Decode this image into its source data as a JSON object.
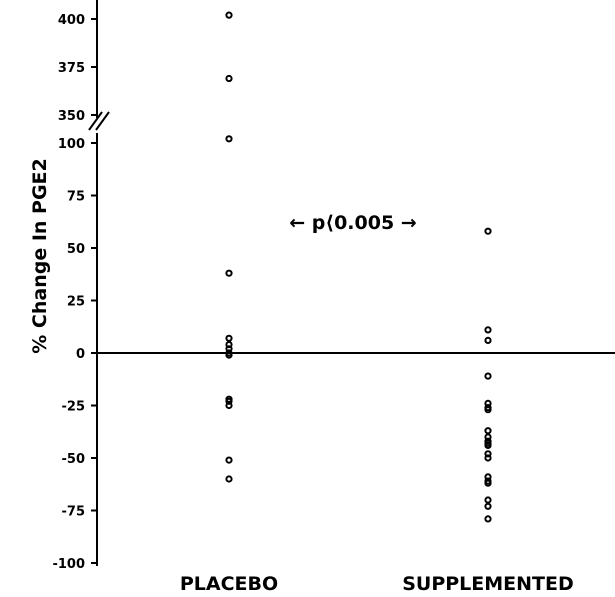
{
  "chart_data": {
    "type": "scatter",
    "ylabel": "% Change In PGE2",
    "categories": [
      "PLACEBO",
      "SUPPLEMENTED"
    ],
    "annotation": "← p⟨0.005 →",
    "y_axis_lower": {
      "range": [
        -100,
        100
      ],
      "ticks": [
        -100,
        -75,
        -50,
        -25,
        0,
        25,
        50,
        75,
        100
      ]
    },
    "y_axis_upper": {
      "range": [
        350,
        400
      ],
      "ticks": [
        350,
        375,
        400
      ]
    },
    "axis_break": "between 100 and 350",
    "series": [
      {
        "category": "PLACEBO",
        "values": [
          402,
          369,
          102,
          38,
          7,
          4,
          2,
          0,
          -1,
          -22,
          -23,
          -25,
          -51,
          -60
        ]
      },
      {
        "category": "SUPPLEMENTED",
        "values": [
          58,
          11,
          6,
          -11,
          -24,
          -26,
          -27,
          -37,
          -40,
          -42,
          -43,
          -44,
          -48,
          -50,
          -59,
          -61,
          -62,
          -70,
          -73,
          -79
        ]
      }
    ]
  }
}
